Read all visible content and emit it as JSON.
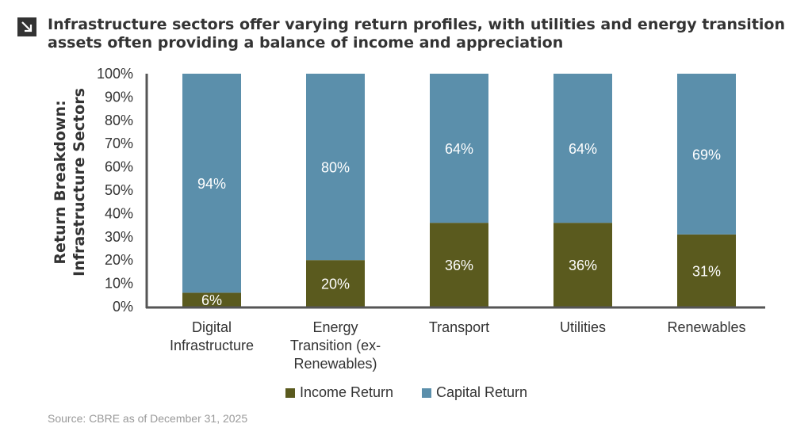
{
  "title": "Infrastructure sectors offer varying return profiles, with utilities and energy transition assets often providing a balance of income and appreciation",
  "source": "Source: CBRE as of December 31, 2025",
  "icon": "arrow-down-right-icon",
  "chart_data": {
    "type": "bar",
    "stacked": true,
    "categories": [
      "Digital Infrastructure",
      "Energy Transition (ex-Renewables)",
      "Transport",
      "Utilities",
      "Renewables"
    ],
    "series": [
      {
        "name": "Income Return",
        "values": [
          6,
          20,
          36,
          36,
          31
        ],
        "labels": [
          "6%",
          "20%",
          "36%",
          "36%",
          "31%"
        ],
        "color": "#5a5a1e"
      },
      {
        "name": "Capital Return",
        "values": [
          94,
          80,
          64,
          64,
          69
        ],
        "labels": [
          "94%",
          "80%",
          "64%",
          "64%",
          "69%"
        ],
        "color": "#5b8fab"
      }
    ],
    "ylabel": "Return Breakdown: Infrastructure Sectors",
    "ylim": [
      0,
      100
    ],
    "yticks": [
      "0%",
      "10%",
      "20%",
      "30%",
      "40%",
      "50%",
      "60%",
      "70%",
      "80%",
      "90%",
      "100%"
    ],
    "grid": false,
    "legend": "bottom"
  }
}
